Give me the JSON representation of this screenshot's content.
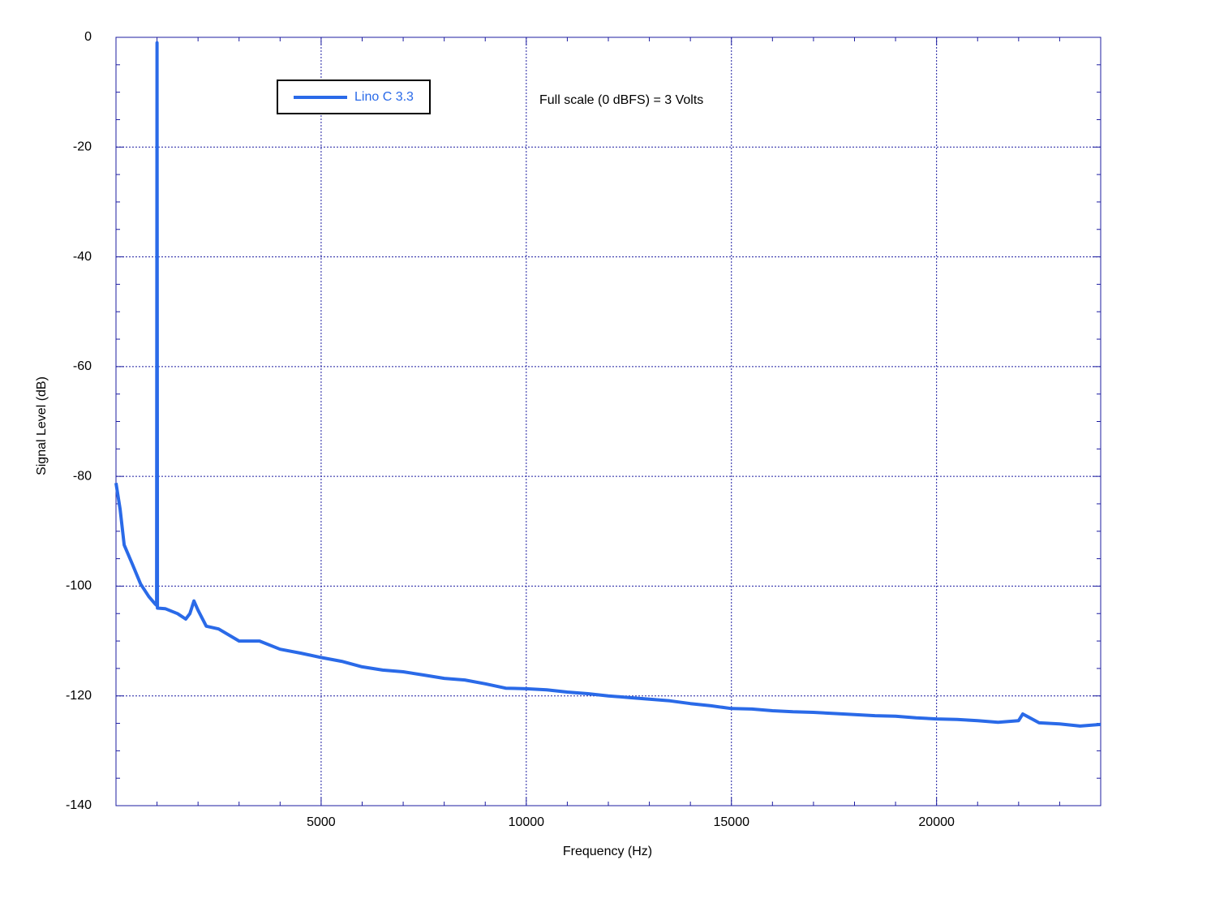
{
  "chart_data": {
    "type": "line",
    "xlabel": "Frequency (Hz)",
    "ylabel": "Signal Level (dB)",
    "annotation": "Full scale (0 dBFS) = 3 Volts",
    "xlim": [
      0,
      24000
    ],
    "ylim": [
      -140,
      0
    ],
    "xticks": [
      5000,
      10000,
      15000,
      20000
    ],
    "yticks": [
      0,
      -20,
      -40,
      -60,
      -80,
      -100,
      -120,
      -140
    ],
    "xminorticks": [
      1000,
      2000,
      3000,
      4000,
      6000,
      7000,
      8000,
      9000,
      11000,
      12000,
      13000,
      14000,
      16000,
      17000,
      18000,
      19000,
      21000,
      22000,
      23000
    ],
    "yminorticks": [
      -5,
      -10,
      -15,
      -25,
      -30,
      -35,
      -45,
      -50,
      -55,
      -65,
      -70,
      -75,
      -85,
      -90,
      -95,
      -105,
      -110,
      -115,
      -125,
      -130,
      -135
    ],
    "grid": true,
    "legend": "upper left",
    "x": [
      0,
      100,
      200,
      400,
      600,
      800,
      960,
      990,
      1000,
      1010,
      1200,
      1500,
      1700,
      1800,
      1900,
      2000,
      2200,
      2500,
      3000,
      3500,
      4000,
      4500,
      5000,
      5500,
      6000,
      6500,
      7000,
      7500,
      8000,
      8500,
      9000,
      9500,
      10000,
      10500,
      11000,
      11500,
      12000,
      12500,
      13000,
      13500,
      14000,
      14500,
      15000,
      15500,
      16000,
      16500,
      17000,
      17500,
      18000,
      18500,
      19000,
      19500,
      20000,
      20500,
      21000,
      21500,
      22000,
      22100,
      22500,
      23000,
      23500,
      24000
    ],
    "series": [
      {
        "name": "Lino C 3.3",
        "color": "#2a6ae8",
        "values": [
          -81.2,
          -86,
          -92.5,
          -96,
          -99.6,
          -101.9,
          -103.3,
          -103.5,
          -1,
          -104,
          -104.1,
          -105,
          -106,
          -105,
          -102.7,
          -104.4,
          -107.3,
          -107.8,
          -110,
          -110,
          -111.5,
          -112.2,
          -113,
          -113.7,
          -114.7,
          -115.3,
          -115.6,
          -116.2,
          -116.8,
          -117.1,
          -117.8,
          -118.6,
          -118.7,
          -118.9,
          -119.3,
          -119.6,
          -120,
          -120.3,
          -120.6,
          -120.9,
          -121.4,
          -121.8,
          -122.3,
          -122.4,
          -122.7,
          -122.9,
          -123,
          -123.2,
          -123.4,
          -123.6,
          -123.7,
          -124,
          -124.2,
          -124.3,
          -124.5,
          -124.8,
          -124.5,
          -123.3,
          -124.9,
          -125.1,
          -125.5,
          -125.2
        ]
      }
    ]
  }
}
